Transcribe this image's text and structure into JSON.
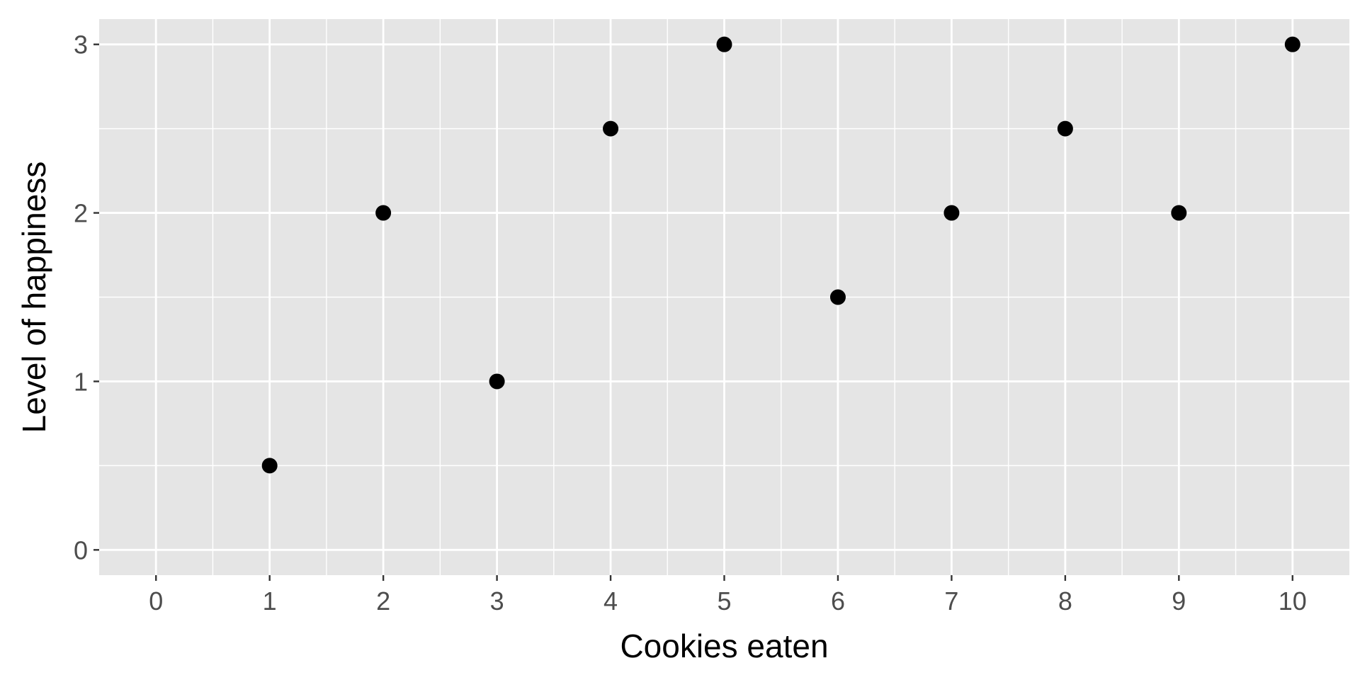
{
  "chart_data": {
    "type": "scatter",
    "title": "",
    "xlabel": "Cookies eaten",
    "ylabel": "Level of happiness",
    "xlim": [
      -0.5,
      10.5
    ],
    "ylim": [
      -0.15,
      3.15
    ],
    "x_ticks": [
      0,
      1,
      2,
      3,
      4,
      5,
      6,
      7,
      8,
      9,
      10
    ],
    "x_tick_labels": [
      "0",
      "1",
      "2",
      "3",
      "4",
      "5",
      "6",
      "7",
      "8",
      "9",
      "10"
    ],
    "y_ticks": [
      0,
      1,
      2,
      3
    ],
    "y_tick_labels": [
      "0",
      "1",
      "2",
      "3"
    ],
    "grid": true,
    "legend": "none",
    "colors": {
      "panel_background": "#e5e5e5",
      "grid": "#ffffff",
      "point": "#000000",
      "tick": "#333333"
    },
    "series": [
      {
        "x": [
          1,
          2,
          3,
          4,
          5,
          6,
          7,
          8,
          9,
          10
        ],
        "y": [
          0.5,
          2,
          1,
          2.5,
          3,
          1.5,
          2,
          2.5,
          2,
          3
        ]
      }
    ]
  }
}
